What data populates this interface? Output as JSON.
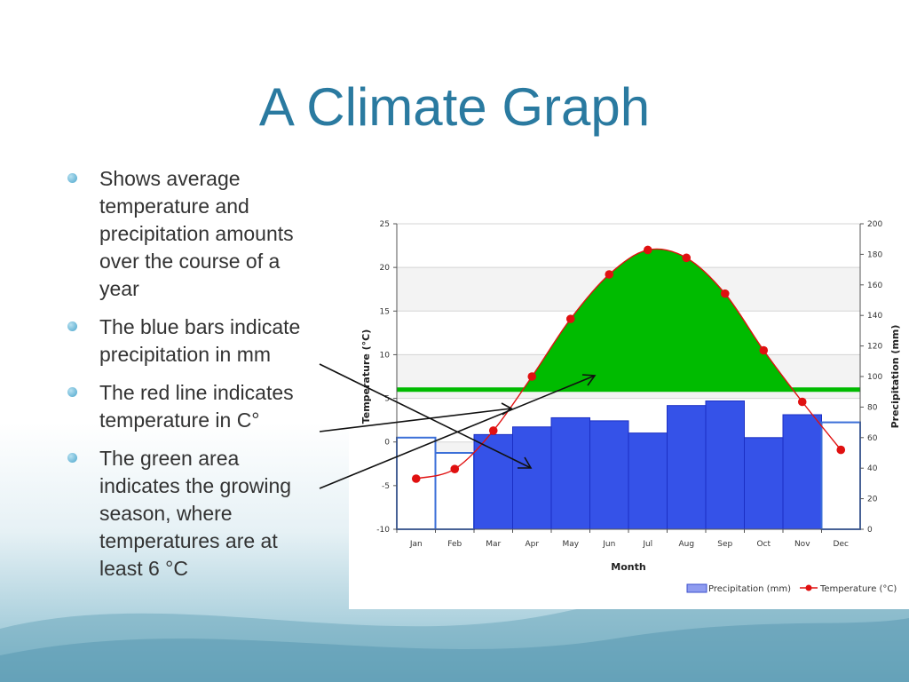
{
  "slide": {
    "title": "A Climate Graph",
    "bullets": [
      "Shows average temperature and precipitation amounts over the course of a year",
      "The blue bars indicate precipitation in mm",
      "The red line indicates temperature in C°",
      "The green area indicates the growing season, where temperatures are at least 6 °C"
    ]
  },
  "colors": {
    "title": "#2a7aa0",
    "bar_fill": "#3552e8",
    "bar_edge": "#1b2fc4",
    "temperature_line": "#e01010",
    "growing_season": "#00bb00"
  },
  "chart_data": {
    "type": "bar+line",
    "xlabel": "Month",
    "ylabel_left": "Temperature (°C)",
    "ylabel_right": "Precipitation (mm)",
    "categories": [
      "Jan",
      "Feb",
      "Mar",
      "Apr",
      "May",
      "Jun",
      "Jul",
      "Aug",
      "Sep",
      "Oct",
      "Nov",
      "Dec"
    ],
    "y_left_range": [
      -10,
      25
    ],
    "y_left_ticks": [
      25,
      20,
      15,
      10,
      5,
      0,
      -5,
      -10
    ],
    "y_right_range": [
      0,
      200
    ],
    "y_right_ticks": [
      200,
      180,
      160,
      140,
      120,
      100,
      80,
      60,
      40,
      20,
      0
    ],
    "growing_season_threshold_c": 6,
    "series": [
      {
        "name": "Precipitation (mm)",
        "type": "bar",
        "axis": "right",
        "values": [
          60,
          50,
          62,
          67,
          73,
          71,
          63,
          81,
          84,
          60,
          75,
          70
        ],
        "filled": [
          false,
          false,
          true,
          true,
          true,
          true,
          true,
          true,
          true,
          true,
          true,
          false
        ]
      },
      {
        "name": "Temperature (°C)",
        "type": "line",
        "axis": "left",
        "values": [
          -4.2,
          -3.1,
          1.3,
          7.5,
          14.1,
          19.2,
          22.0,
          21.1,
          17.0,
          10.5,
          4.6,
          -0.9
        ]
      }
    ],
    "legend": "bottom-right",
    "grid": true
  }
}
